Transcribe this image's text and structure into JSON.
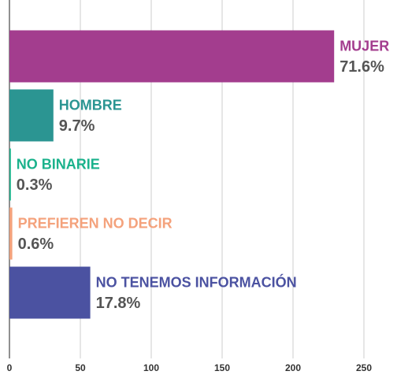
{
  "chart_data": {
    "type": "barh",
    "categories": [
      "MUJER",
      "HOMBRE",
      "NO BINARIE",
      "PREFIEREN NO DECIR",
      "NO TENEMOS INFORMACIÓN"
    ],
    "values": [
      229,
      31,
      1,
      2,
      57
    ],
    "percent_labels": [
      "71.6%",
      "9.7%",
      "0.3%",
      "0.6%",
      "17.8%"
    ],
    "colors": [
      "#a33d8e",
      "#2b9592",
      "#1bb28c",
      "#f4a27c",
      "#4b52a1"
    ],
    "xlim": [
      0,
      250
    ],
    "xticks": [
      0,
      50,
      100,
      150,
      200,
      250
    ],
    "grid": true
  }
}
